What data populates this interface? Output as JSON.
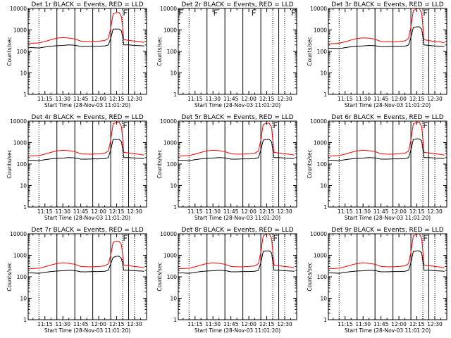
{
  "figure": {
    "start_time_label": "Start Time (28-Nov-03 11:01:20)",
    "ylabel": "Counts/sec",
    "x_tick_labels": [
      "11:15",
      "11:30",
      "11:45",
      "12:00",
      "12:15",
      "12:30"
    ],
    "y_tick_labels": [
      "1",
      "10",
      "100",
      "1000",
      "10000"
    ],
    "colors": {
      "events": "#000000",
      "lld": "#ff0000",
      "axes": "#000000"
    }
  },
  "chart_data": [
    {
      "type": "line",
      "title": "Det 1r BLACK = Events, RED = LLD",
      "xlabel": "Start Time (28-Nov-03 11:01:20)",
      "ylabel": "Counts/sec",
      "y_scale": "log",
      "xlim": [
        "11:01",
        "12:40"
      ],
      "ylim": [
        1,
        10000
      ],
      "x": [
        "11:01",
        "11:05",
        "11:10",
        "11:15",
        "11:20",
        "11:25",
        "11:30",
        "11:35",
        "11:40",
        "11:45",
        "11:50",
        "11:55",
        "12:00",
        "12:05",
        "12:08",
        "12:10",
        "12:12",
        "12:15",
        "12:17",
        "12:19",
        "12:21",
        "12:25",
        "12:30",
        "12:35",
        "12:38"
      ],
      "series": [
        {
          "name": "Events",
          "values": [
            150,
            150,
            145,
            160,
            175,
            185,
            190,
            200,
            195,
            170,
            170,
            175,
            175,
            180,
            200,
            400,
            1100,
            1100,
            1100,
            900,
            200,
            200,
            190,
            185,
            180
          ]
        },
        {
          "name": "LLD",
          "values": [
            240,
            240,
            250,
            290,
            350,
            410,
            440,
            420,
            380,
            300,
            290,
            290,
            300,
            320,
            400,
            1200,
            5500,
            6500,
            6500,
            4000,
            350,
            330,
            300,
            280,
            260
          ]
        }
      ],
      "vlines_solid": [
        "11:25",
        "11:40",
        "11:55",
        "12:10",
        "12:25"
      ],
      "vlines_dotted": [
        "11:10",
        "12:20",
        "12:30"
      ],
      "markers": [
        "12:20"
      ],
      "no_data": false
    },
    {
      "type": "line",
      "title": "Det 2r BLACK = Events, RED = LLD",
      "xlabel": "Start Time (28-Nov-03 11:01:20)",
      "ylabel": "Counts/sec",
      "y_scale": "log",
      "xlim": [
        "11:01",
        "12:40"
      ],
      "ylim": [
        1,
        10000
      ],
      "x": [],
      "series": [],
      "vlines_solid": [
        "11:25",
        "11:40",
        "11:55",
        "12:10",
        "12:25"
      ],
      "vlines_dotted": [
        "11:10",
        "12:20",
        "12:30"
      ],
      "markers": [
        "11:01",
        "11:30",
        "12:02",
        "12:35"
      ],
      "no_data": true
    },
    {
      "type": "line",
      "title": "Det 3r BLACK = Events, RED = LLD",
      "xlabel": "Start Time (28-Nov-03 11:01:20)",
      "ylabel": "Counts/sec",
      "y_scale": "log",
      "xlim": [
        "11:01",
        "12:40"
      ],
      "ylim": [
        1,
        10000
      ],
      "x": [
        "11:01",
        "11:05",
        "11:10",
        "11:15",
        "11:20",
        "11:25",
        "11:30",
        "11:35",
        "11:40",
        "11:45",
        "11:50",
        "11:55",
        "12:00",
        "12:05",
        "12:08",
        "12:10",
        "12:12",
        "12:15",
        "12:17",
        "12:19",
        "12:21",
        "12:25",
        "12:30",
        "12:35",
        "12:38"
      ],
      "series": [
        {
          "name": "Events",
          "values": [
            140,
            140,
            135,
            150,
            165,
            175,
            180,
            190,
            185,
            165,
            165,
            170,
            170,
            175,
            200,
            450,
            1300,
            1400,
            1400,
            1100,
            200,
            190,
            180,
            175,
            170
          ]
        },
        {
          "name": "LLD",
          "values": [
            230,
            230,
            240,
            280,
            340,
            400,
            430,
            410,
            370,
            290,
            280,
            280,
            290,
            310,
            400,
            1400,
            8000,
            10000,
            10000,
            6000,
            350,
            320,
            290,
            270,
            250
          ]
        }
      ],
      "vlines_solid": [
        "11:25",
        "11:40",
        "11:55",
        "12:10",
        "12:25"
      ],
      "vlines_dotted": [
        "11:10",
        "12:20",
        "12:30"
      ],
      "markers": [
        "12:20"
      ],
      "no_data": false
    },
    {
      "type": "line",
      "title": "Det 4r BLACK = Events, RED = LLD",
      "xlabel": "Start Time (28-Nov-03 11:01:20)",
      "ylabel": "Counts/sec",
      "y_scale": "log",
      "xlim": [
        "11:01",
        "12:40"
      ],
      "ylim": [
        1,
        10000
      ],
      "x": [
        "11:01",
        "11:05",
        "11:10",
        "11:15",
        "11:20",
        "11:25",
        "11:30",
        "11:35",
        "11:40",
        "11:45",
        "11:50",
        "11:55",
        "12:00",
        "12:05",
        "12:08",
        "12:10",
        "12:12",
        "12:15",
        "12:17",
        "12:19",
        "12:21",
        "12:25",
        "12:30",
        "12:35",
        "12:38"
      ],
      "series": [
        {
          "name": "Events",
          "values": [
            150,
            150,
            145,
            160,
            175,
            185,
            190,
            200,
            195,
            170,
            170,
            175,
            175,
            180,
            200,
            450,
            1400,
            1400,
            1400,
            1100,
            200,
            200,
            190,
            185,
            180
          ]
        },
        {
          "name": "LLD",
          "values": [
            240,
            240,
            250,
            290,
            350,
            410,
            440,
            420,
            380,
            300,
            290,
            290,
            300,
            320,
            400,
            1300,
            7500,
            9000,
            9000,
            5500,
            350,
            330,
            300,
            280,
            260
          ]
        }
      ],
      "vlines_solid": [
        "11:25",
        "11:40",
        "11:55",
        "12:10",
        "12:25"
      ],
      "vlines_dotted": [
        "11:10",
        "12:20",
        "12:30"
      ],
      "markers": [
        "12:20"
      ],
      "no_data": false
    },
    {
      "type": "line",
      "title": "Det 5r BLACK = Events, RED = LLD",
      "xlabel": "Start Time (28-Nov-03 11:01:20)",
      "ylabel": "Counts/sec",
      "y_scale": "log",
      "xlim": [
        "11:01",
        "12:40"
      ],
      "ylim": [
        1,
        10000
      ],
      "x": [
        "11:01",
        "11:05",
        "11:10",
        "11:15",
        "11:20",
        "11:25",
        "11:30",
        "11:35",
        "11:40",
        "11:45",
        "11:50",
        "11:55",
        "12:00",
        "12:05",
        "12:08",
        "12:10",
        "12:12",
        "12:15",
        "12:17",
        "12:19",
        "12:21",
        "12:25",
        "12:30",
        "12:35",
        "12:38"
      ],
      "series": [
        {
          "name": "Events",
          "values": [
            150,
            150,
            145,
            160,
            175,
            185,
            190,
            200,
            195,
            170,
            170,
            175,
            175,
            180,
            200,
            450,
            1300,
            1400,
            1400,
            1100,
            200,
            200,
            190,
            185,
            180
          ]
        },
        {
          "name": "LLD",
          "values": [
            240,
            240,
            250,
            290,
            350,
            410,
            440,
            420,
            380,
            300,
            290,
            290,
            300,
            320,
            400,
            1300,
            7000,
            8000,
            8000,
            5000,
            350,
            330,
            300,
            280,
            260
          ]
        }
      ],
      "vlines_solid": [
        "11:25",
        "11:40",
        "11:55",
        "12:10",
        "12:25"
      ],
      "vlines_dotted": [
        "11:10",
        "12:20",
        "12:30"
      ],
      "markers": [
        "12:20"
      ],
      "no_data": false
    },
    {
      "type": "line",
      "title": "Det 6r BLACK = Events, RED = LLD",
      "xlabel": "Start Time (28-Nov-03 11:01:20)",
      "ylabel": "Counts/sec",
      "y_scale": "log",
      "xlim": [
        "11:01",
        "12:40"
      ],
      "ylim": [
        1,
        10000
      ],
      "x": [
        "11:01",
        "11:05",
        "11:10",
        "11:15",
        "11:20",
        "11:25",
        "11:30",
        "11:35",
        "11:40",
        "11:45",
        "11:50",
        "11:55",
        "12:00",
        "12:05",
        "12:08",
        "12:10",
        "12:12",
        "12:15",
        "12:17",
        "12:19",
        "12:21",
        "12:25",
        "12:30",
        "12:35",
        "12:38"
      ],
      "series": [
        {
          "name": "Events",
          "values": [
            150,
            150,
            145,
            160,
            175,
            185,
            190,
            200,
            195,
            170,
            170,
            175,
            175,
            180,
            200,
            450,
            1400,
            1500,
            1500,
            1200,
            200,
            200,
            190,
            185,
            180
          ]
        },
        {
          "name": "LLD",
          "values": [
            240,
            240,
            250,
            290,
            350,
            410,
            440,
            420,
            380,
            300,
            290,
            290,
            300,
            320,
            400,
            1300,
            7500,
            9000,
            9000,
            5500,
            350,
            330,
            300,
            280,
            260
          ]
        }
      ],
      "vlines_solid": [
        "11:25",
        "11:40",
        "11:55",
        "12:10",
        "12:25"
      ],
      "vlines_dotted": [
        "11:10",
        "12:20",
        "12:30"
      ],
      "markers": [
        "12:20"
      ],
      "no_data": false
    },
    {
      "type": "line",
      "title": "Det 7r BLACK = Events, RED = LLD",
      "xlabel": "Start Time (28-Nov-03 11:01:20)",
      "ylabel": "Counts/sec",
      "y_scale": "log",
      "xlim": [
        "11:01",
        "12:40"
      ],
      "ylim": [
        1,
        10000
      ],
      "x": [
        "11:01",
        "11:05",
        "11:10",
        "11:15",
        "11:20",
        "11:25",
        "11:30",
        "11:35",
        "11:40",
        "11:45",
        "11:50",
        "11:55",
        "12:00",
        "12:05",
        "12:08",
        "12:10",
        "12:12",
        "12:15",
        "12:17",
        "12:19",
        "12:21",
        "12:25",
        "12:30",
        "12:35",
        "12:38"
      ],
      "series": [
        {
          "name": "Events",
          "values": [
            150,
            150,
            145,
            160,
            175,
            185,
            190,
            200,
            195,
            170,
            170,
            175,
            175,
            180,
            200,
            400,
            800,
            900,
            900,
            700,
            200,
            200,
            190,
            185,
            180
          ]
        },
        {
          "name": "LLD",
          "values": [
            240,
            240,
            250,
            290,
            350,
            410,
            440,
            420,
            380,
            300,
            290,
            290,
            300,
            320,
            400,
            1000,
            4000,
            4500,
            4500,
            3000,
            350,
            330,
            300,
            280,
            260
          ]
        }
      ],
      "vlines_solid": [
        "11:25",
        "11:40",
        "11:55",
        "12:10",
        "12:25"
      ],
      "vlines_dotted": [
        "11:10",
        "12:20",
        "12:30"
      ],
      "markers": [
        "12:20"
      ],
      "no_data": false
    },
    {
      "type": "line",
      "title": "Det 8r BLACK = Events, RED = LLD",
      "xlabel": "Start Time (28-Nov-03 11:01:20)",
      "ylabel": "Counts/sec",
      "y_scale": "log",
      "xlim": [
        "11:01",
        "12:40"
      ],
      "ylim": [
        1,
        10000
      ],
      "x": [
        "11:01",
        "11:05",
        "11:10",
        "11:15",
        "11:20",
        "11:25",
        "11:30",
        "11:35",
        "11:40",
        "11:45",
        "11:50",
        "11:55",
        "12:00",
        "12:05",
        "12:08",
        "12:10",
        "12:12",
        "12:15",
        "12:17",
        "12:19",
        "12:21",
        "12:25",
        "12:30",
        "12:35",
        "12:38"
      ],
      "series": [
        {
          "name": "Events",
          "values": [
            150,
            150,
            145,
            160,
            175,
            185,
            190,
            200,
            195,
            170,
            170,
            175,
            175,
            180,
            200,
            450,
            1500,
            1600,
            1600,
            1300,
            200,
            200,
            190,
            185,
            180
          ]
        },
        {
          "name": "LLD",
          "values": [
            240,
            240,
            250,
            290,
            350,
            410,
            440,
            420,
            380,
            300,
            290,
            290,
            300,
            320,
            400,
            1400,
            8000,
            10000,
            10000,
            6000,
            350,
            330,
            300,
            280,
            260
          ]
        }
      ],
      "vlines_solid": [
        "11:25",
        "11:40",
        "11:55",
        "12:10",
        "12:25"
      ],
      "vlines_dotted": [
        "11:10",
        "12:20",
        "12:30"
      ],
      "markers": [
        "12:20"
      ],
      "no_data": false
    },
    {
      "type": "line",
      "title": "Det 9r BLACK = Events, RED = LLD",
      "xlabel": "Start Time (28-Nov-03 11:01:20)",
      "ylabel": "Counts/sec",
      "y_scale": "log",
      "xlim": [
        "11:01",
        "12:40"
      ],
      "ylim": [
        1,
        10000
      ],
      "x": [
        "11:01",
        "11:05",
        "11:10",
        "11:15",
        "11:20",
        "11:25",
        "11:30",
        "11:35",
        "11:40",
        "11:45",
        "11:50",
        "11:55",
        "12:00",
        "12:05",
        "12:08",
        "12:10",
        "12:12",
        "12:15",
        "12:17",
        "12:19",
        "12:21",
        "12:25",
        "12:30",
        "12:35",
        "12:38"
      ],
      "series": [
        {
          "name": "Events",
          "values": [
            150,
            150,
            145,
            160,
            175,
            185,
            190,
            200,
            195,
            170,
            170,
            175,
            175,
            180,
            200,
            450,
            1500,
            1600,
            1600,
            1300,
            200,
            200,
            190,
            185,
            180
          ]
        },
        {
          "name": "LLD",
          "values": [
            240,
            240,
            250,
            290,
            350,
            410,
            440,
            420,
            380,
            300,
            290,
            290,
            300,
            320,
            400,
            1400,
            8000,
            10000,
            10000,
            6000,
            350,
            330,
            300,
            280,
            260
          ]
        }
      ],
      "vlines_solid": [
        "11:25",
        "11:40",
        "11:55",
        "12:10",
        "12:25"
      ],
      "vlines_dotted": [
        "11:10",
        "12:20",
        "12:30"
      ],
      "markers": [
        "12:20"
      ],
      "no_data": false
    }
  ]
}
